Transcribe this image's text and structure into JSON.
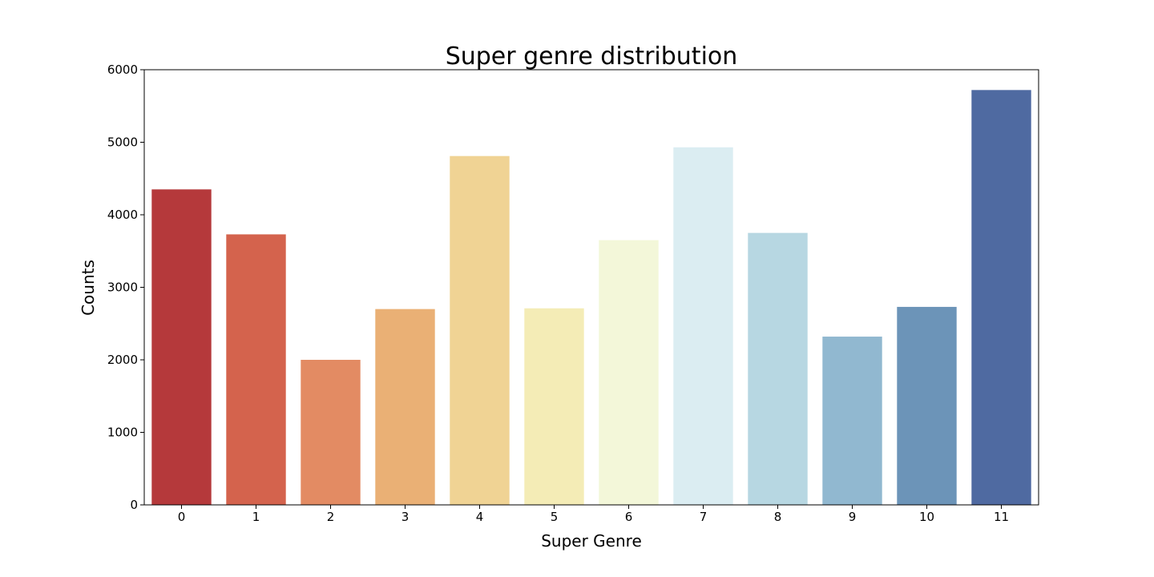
{
  "chart_data": {
    "type": "bar",
    "title": "Super genre distribution",
    "xlabel": "Super Genre",
    "ylabel": "Counts",
    "categories": [
      "0",
      "1",
      "2",
      "3",
      "4",
      "5",
      "6",
      "7",
      "8",
      "9",
      "10",
      "11"
    ],
    "values": [
      4350,
      3730,
      2000,
      2700,
      4810,
      2710,
      3650,
      4930,
      3750,
      2320,
      2730,
      5720
    ],
    "colors": [
      "#b5393b",
      "#d4634d",
      "#e38b63",
      "#eab075",
      "#f0d394",
      "#f4ecb6",
      "#f3f7d9",
      "#dbedf2",
      "#b7d7e2",
      "#91b8d0",
      "#6c94b8",
      "#4f6aa1"
    ],
    "ylim": [
      0,
      6000
    ],
    "yticks": [
      "0",
      "1000",
      "2000",
      "3000",
      "4000",
      "5000",
      "6000"
    ],
    "grid": false,
    "legend": "none"
  }
}
